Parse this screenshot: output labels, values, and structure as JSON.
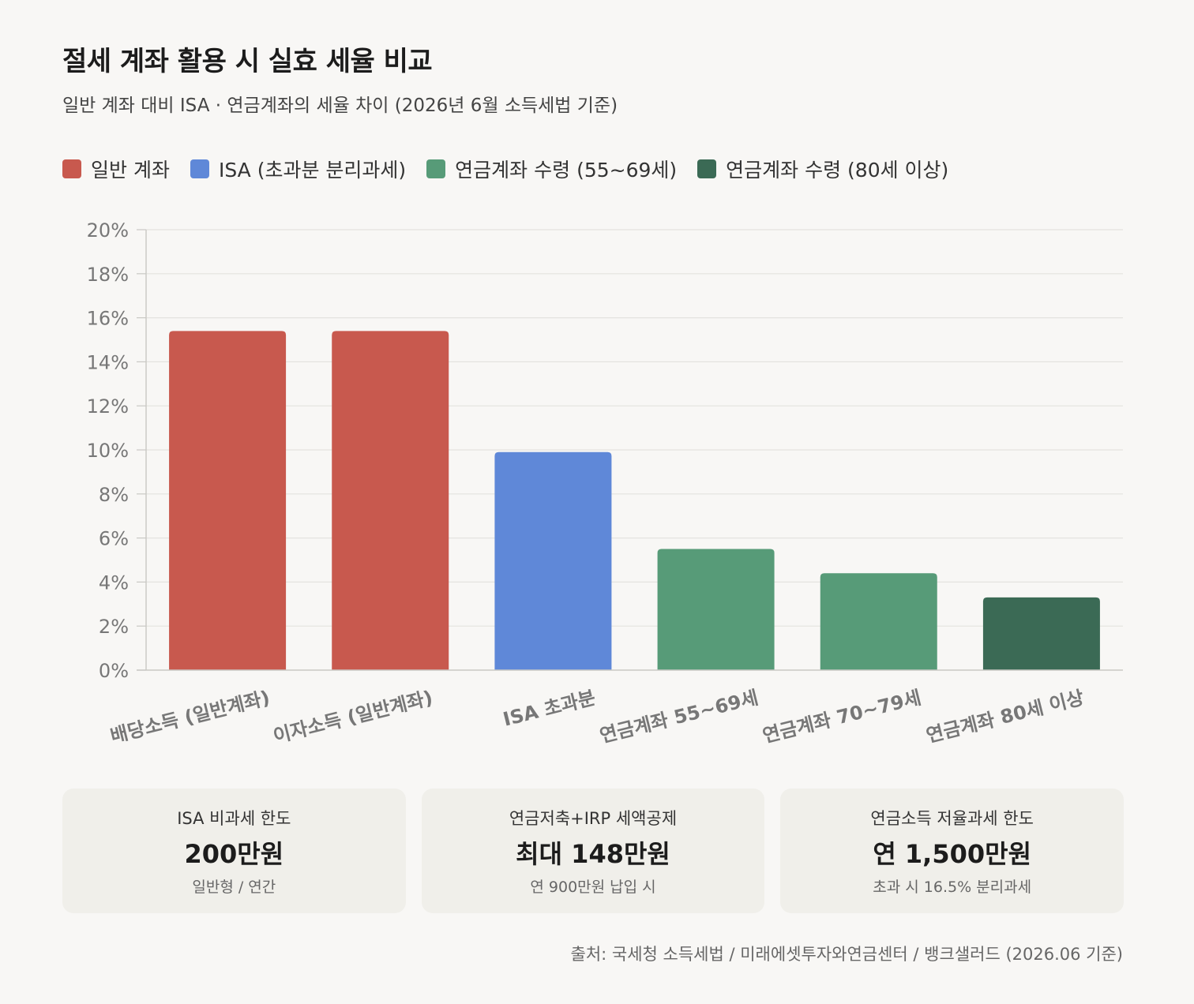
{
  "header": {
    "title": "절세 계좌 활용 시 실효 세율 비교",
    "subtitle": "일반 계좌 대비 ISA · 연금계좌의 세율 차이 (2026년 6월 소득세법 기준)"
  },
  "legend": [
    {
      "label": "일반 계좌",
      "color": "#c8594e"
    },
    {
      "label": "ISA (초과분 분리과세)",
      "color": "#5f88d8"
    },
    {
      "label": "연금계좌 수령 (55~69세)",
      "color": "#579b78"
    },
    {
      "label": "연금계좌 수령 (80세 이상)",
      "color": "#3b6a55"
    }
  ],
  "chart_data": {
    "type": "bar",
    "categories": [
      "배당소득 (일반계좌)",
      "이자소득 (일반계좌)",
      "ISA 초과분",
      "연금계좌 55~69세",
      "연금계좌 70~79세",
      "연금계좌 80세 이상"
    ],
    "values": [
      15.4,
      15.4,
      9.9,
      5.5,
      4.4,
      3.3
    ],
    "colors": [
      "#c8594e",
      "#c8594e",
      "#5f88d8",
      "#579b78",
      "#579b78",
      "#3b6a55"
    ],
    "ylim": [
      0,
      20
    ],
    "yticks": [
      0,
      2,
      4,
      6,
      8,
      10,
      12,
      14,
      16,
      18,
      20
    ],
    "ytick_suffix": "%",
    "grid": true,
    "legend_position": "top-left"
  },
  "cards": [
    {
      "label": "ISA 비과세 한도",
      "value": "200만원",
      "note": "일반형 / 연간"
    },
    {
      "label": "연금저축+IRP 세액공제",
      "value": "최대 148만원",
      "note": "연 900만원 납입 시"
    },
    {
      "label": "연금소득 저율과세 한도",
      "value": "연 1,500만원",
      "note": "초과 시 16.5% 분리과세"
    }
  ],
  "source": "출처: 국세청 소득세법 / 미래에셋투자와연금센터 / 뱅크샐러드 (2026.06 기준)"
}
